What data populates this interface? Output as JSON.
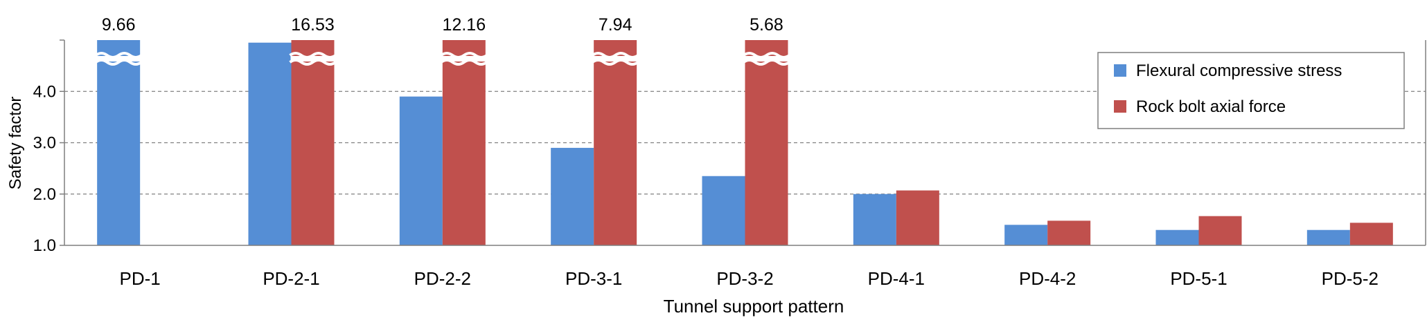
{
  "colors": {
    "series_1": "#558ED5",
    "series_2": "#C0504D",
    "gridline": "#808080",
    "axis": "#7F7F7F"
  },
  "chart_data": {
    "type": "bar",
    "title": "",
    "xlabel": "Tunnel support pattern",
    "ylabel": "Safety factor",
    "ylim": [
      1.0,
      5.0
    ],
    "yticks": [
      1.0,
      2.0,
      3.0,
      4.0
    ],
    "ytick_labels": [
      "1.0",
      "2.0",
      "3.0",
      "4.0"
    ],
    "grid": true,
    "legend_position": "top-right",
    "axis_break": "bars exceeding the axis maximum are drawn with a wavy break",
    "categories": [
      "PD-1",
      "PD-2-1",
      "PD-2-2",
      "PD-3-1",
      "PD-3-2",
      "PD-4-1",
      "PD-4-2",
      "PD-5-1",
      "PD-5-2"
    ],
    "series": [
      {
        "name": "Flexural compressive stress",
        "values": [
          9.66,
          4.95,
          3.9,
          2.9,
          2.35,
          2.0,
          1.4,
          1.3,
          1.3
        ]
      },
      {
        "name": "Rock bolt axial force",
        "values": [
          null,
          16.53,
          12.16,
          7.94,
          5.68,
          2.07,
          1.48,
          1.57,
          1.44
        ]
      }
    ],
    "annotations": [
      {
        "category": "PD-1",
        "series": 0,
        "text": "9.66"
      },
      {
        "category": "PD-2-1",
        "series": 1,
        "text": "16.53"
      },
      {
        "category": "PD-2-2",
        "series": 1,
        "text": "12.16"
      },
      {
        "category": "PD-3-1",
        "series": 1,
        "text": "7.94"
      },
      {
        "category": "PD-3-2",
        "series": 1,
        "text": "5.68"
      }
    ]
  }
}
